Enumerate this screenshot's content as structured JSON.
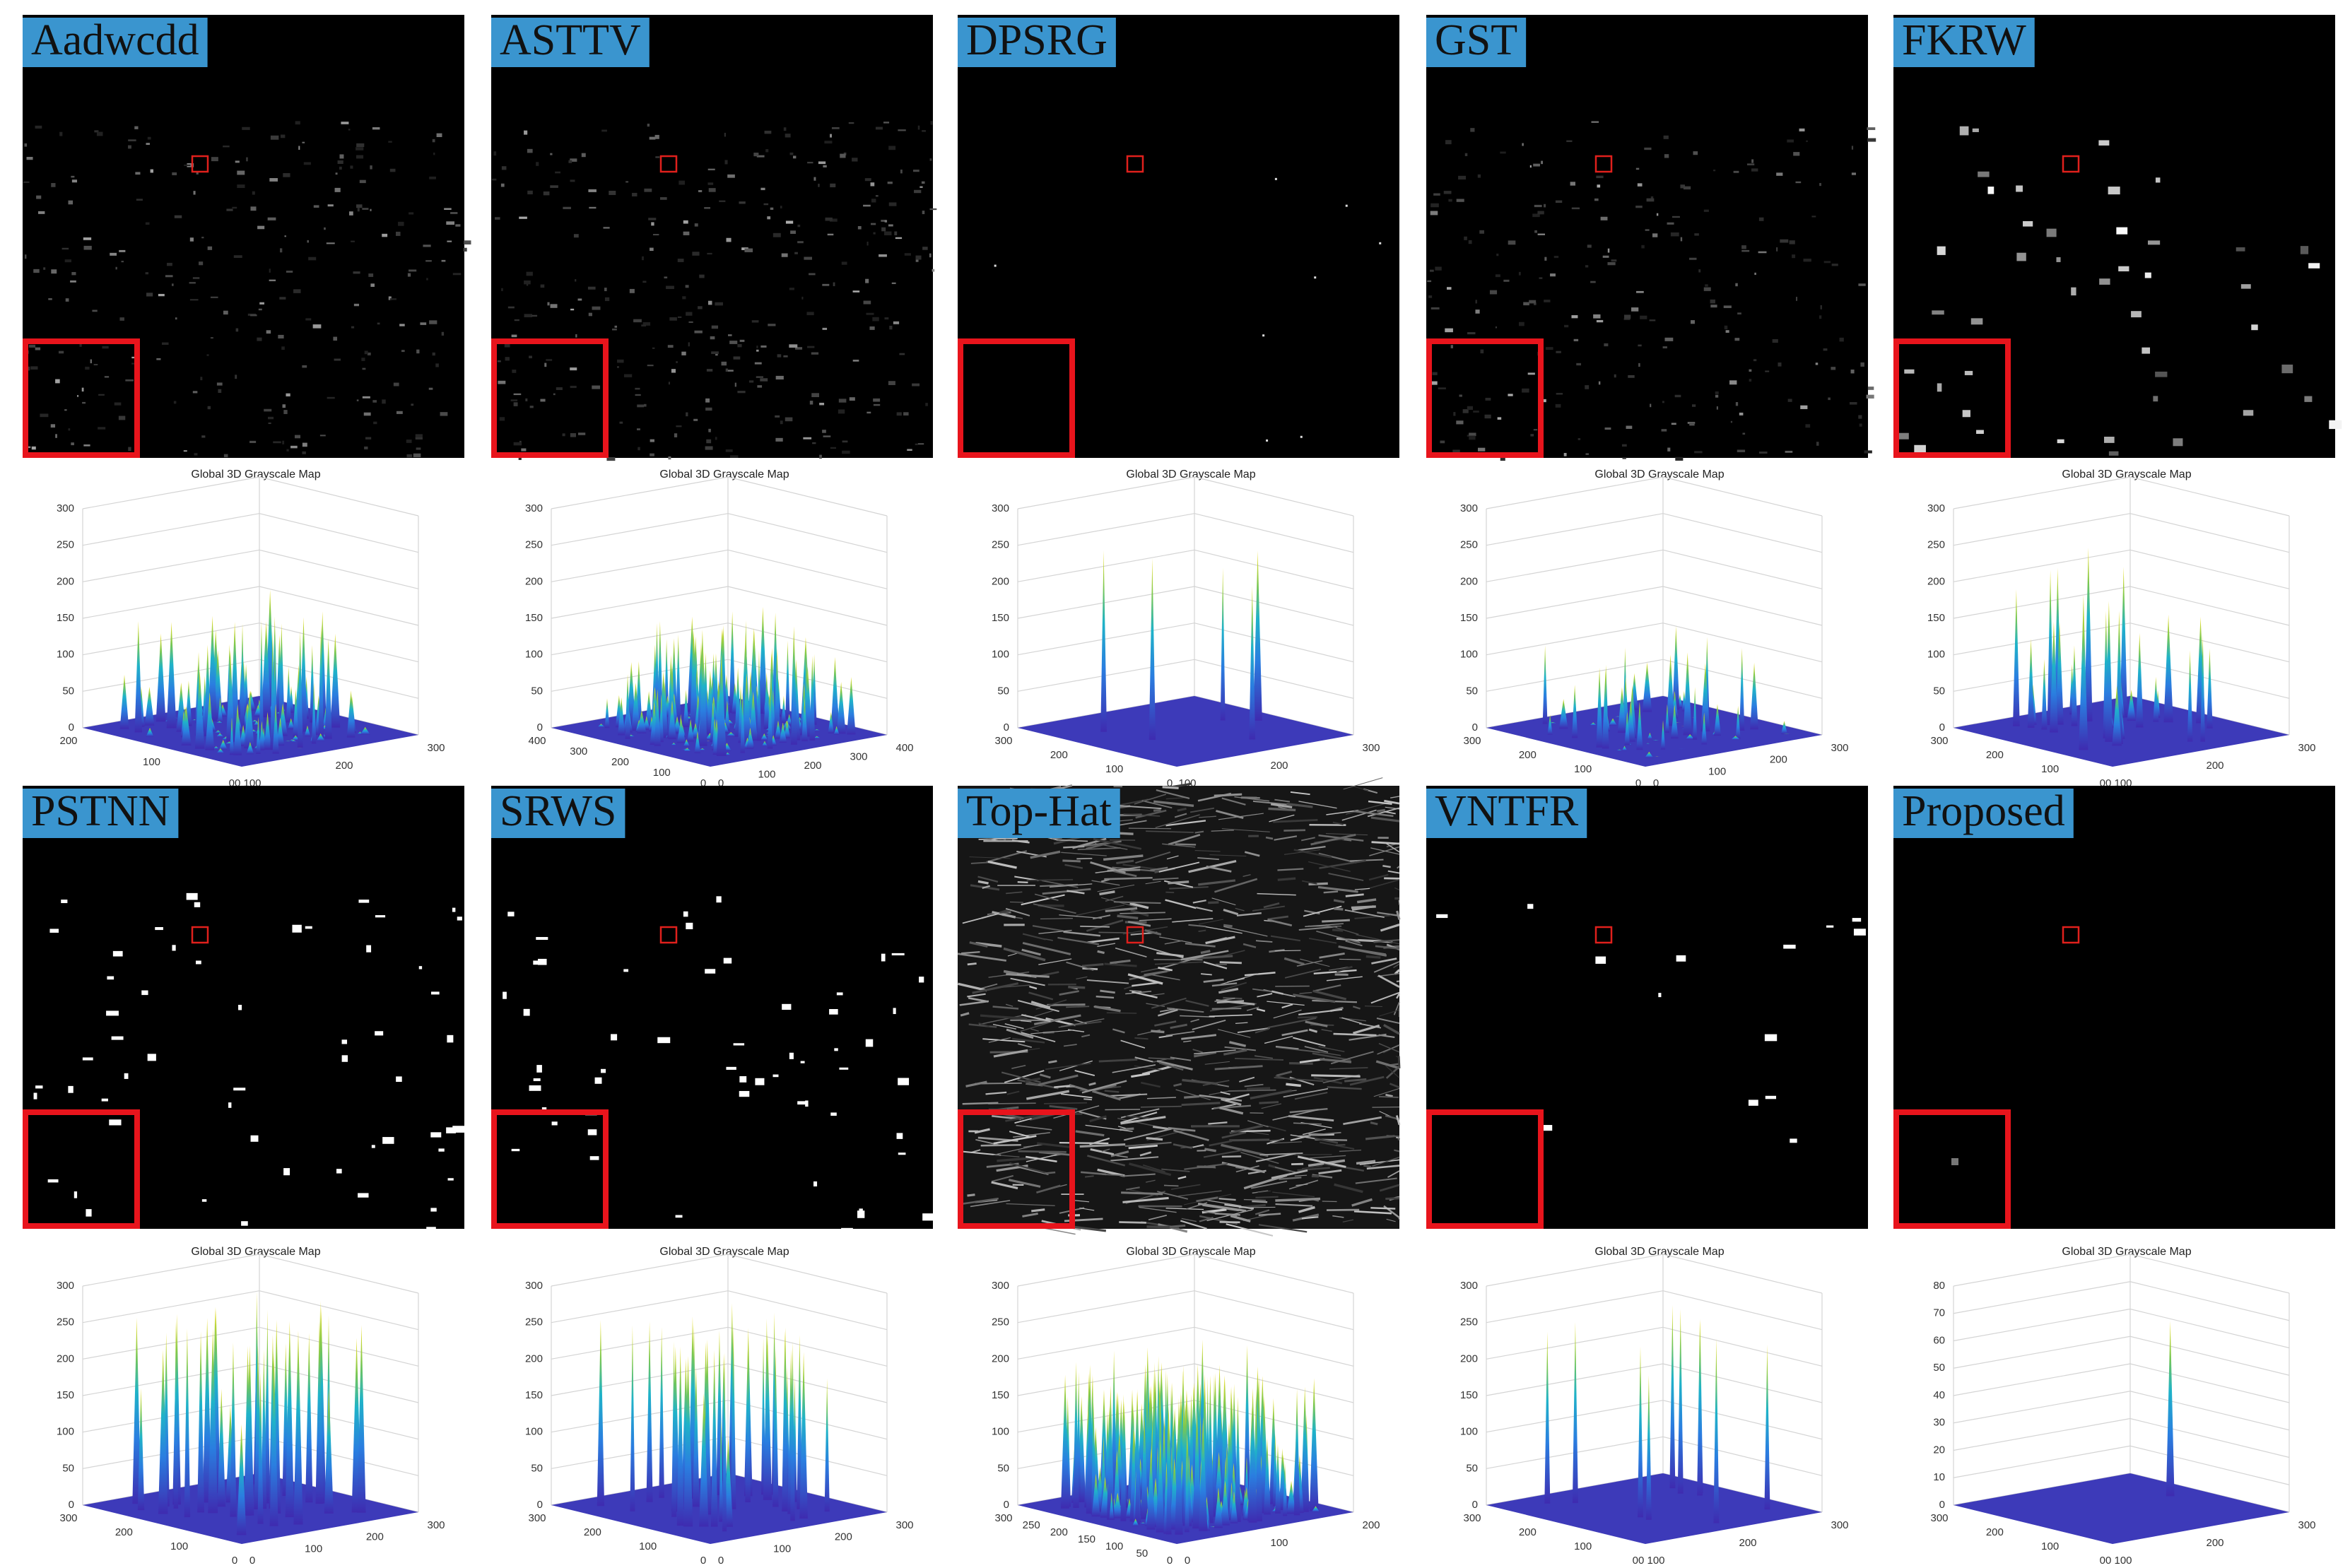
{
  "panels": [
    {
      "method": "Aadwcdd",
      "plot_title": "Global 3D Grayscale Map",
      "z_ticks": [
        "0",
        "50",
        "100",
        "150",
        "200",
        "250",
        "300"
      ],
      "floor_left": [
        "200",
        "100",
        "00"
      ],
      "floor_right": [
        "100",
        "200",
        "300"
      ]
    },
    {
      "method": "ASTTV",
      "plot_title": "Global 3D Grayscale Map",
      "z_ticks": [
        "0",
        "50",
        "100",
        "150",
        "200",
        "250",
        "300"
      ],
      "floor_left": [
        "400",
        "300",
        "200",
        "100",
        "0"
      ],
      "floor_right": [
        "0",
        "100",
        "200",
        "300",
        "400"
      ]
    },
    {
      "method": "DPSRG",
      "plot_title": "Global 3D Grayscale Map",
      "z_ticks": [
        "0",
        "50",
        "100",
        "150",
        "200",
        "250",
        "300"
      ],
      "floor_left": [
        "300",
        "200",
        "100",
        "0"
      ],
      "floor_right": [
        "100",
        "200",
        "300"
      ]
    },
    {
      "method": "GST",
      "plot_title": "Global 3D Grayscale Map",
      "z_ticks": [
        "0",
        "50",
        "100",
        "150",
        "200",
        "250",
        "300"
      ],
      "floor_left": [
        "300",
        "200",
        "100",
        "0"
      ],
      "floor_right": [
        "0",
        "100",
        "200",
        "300"
      ]
    },
    {
      "method": "FKRW",
      "plot_title": "Global 3D Grayscale Map",
      "z_ticks": [
        "0",
        "50",
        "100",
        "150",
        "200",
        "250",
        "300"
      ],
      "floor_left": [
        "300",
        "200",
        "100",
        "00"
      ],
      "floor_right": [
        "100",
        "200",
        "300"
      ]
    },
    {
      "method": "PSTNN",
      "plot_title": "Global 3D Grayscale Map",
      "z_ticks": [
        "0",
        "50",
        "100",
        "150",
        "200",
        "250",
        "300"
      ],
      "floor_left": [
        "300",
        "200",
        "100",
        "0"
      ],
      "floor_right": [
        "0",
        "100",
        "200",
        "300"
      ]
    },
    {
      "method": "SRWS",
      "plot_title": "Global 3D Grayscale Map",
      "z_ticks": [
        "0",
        "50",
        "100",
        "150",
        "200",
        "250",
        "300"
      ],
      "floor_left": [
        "300",
        "200",
        "100",
        "0"
      ],
      "floor_right": [
        "0",
        "100",
        "200",
        "300"
      ]
    },
    {
      "method": "Top-Hat",
      "plot_title": "Global 3D Grayscale Map",
      "z_ticks": [
        "0",
        "50",
        "100",
        "150",
        "200",
        "250",
        "300"
      ],
      "floor_left": [
        "300",
        "250",
        "200",
        "150",
        "100",
        "50",
        "0"
      ],
      "floor_right": [
        "0",
        "100",
        "200"
      ]
    },
    {
      "method": "VNTFR",
      "plot_title": "Global 3D Grayscale Map",
      "z_ticks": [
        "0",
        "50",
        "100",
        "150",
        "200",
        "250",
        "300"
      ],
      "floor_left": [
        "300",
        "200",
        "100",
        "00"
      ],
      "floor_right": [
        "100",
        "200",
        "300"
      ]
    },
    {
      "method": "Proposed",
      "plot_title": "Global 3D Grayscale Map",
      "z_ticks": [
        "0",
        "10",
        "20",
        "30",
        "40",
        "50",
        "60",
        "70",
        "80"
      ],
      "floor_left": [
        "300",
        "200",
        "100",
        "00"
      ],
      "floor_right": [
        "100",
        "200",
        "300"
      ]
    }
  ]
}
